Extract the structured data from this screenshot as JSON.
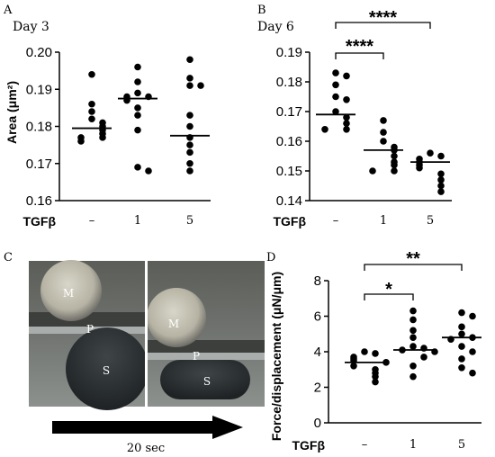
{
  "panels": {
    "a": "A",
    "b": "B",
    "c": "C",
    "d": "D"
  },
  "titles": {
    "a": "Day 3",
    "b": "Day 6"
  },
  "photo": {
    "labels": {
      "m": "M",
      "p": "P",
      "s": "S"
    },
    "time_label": "20 sec"
  },
  "group_label": "TGFβ",
  "chart_data": [
    {
      "type": "scatter",
      "title": "Day 3",
      "xlabel": "TGFβ",
      "ylabel": "Area (μm²)",
      "categories": [
        "–",
        "1",
        "5"
      ],
      "ylim": [
        0.16,
        0.2
      ],
      "yticks": [
        "0.16",
        "0.17",
        "0.18",
        "0.19",
        "0.20"
      ],
      "groups": [
        {
          "points": [
            0.194,
            0.186,
            0.184,
            0.182,
            0.181,
            0.18,
            0.179,
            0.178,
            0.177,
            0.177,
            0.176
          ],
          "median": 0.1795
        },
        {
          "points": [
            0.196,
            0.192,
            0.189,
            0.188,
            0.188,
            0.187,
            0.185,
            0.183,
            0.179,
            0.169,
            0.168
          ],
          "median": 0.1875
        },
        {
          "points": [
            0.198,
            0.193,
            0.191,
            0.191,
            0.183,
            0.18,
            0.177,
            0.175,
            0.173,
            0.17,
            0.168
          ],
          "median": 0.1775
        }
      ]
    },
    {
      "type": "scatter",
      "title": "Day 6",
      "xlabel": "TGFβ",
      "ylabel": "",
      "categories": [
        "–",
        "1",
        "5"
      ],
      "ylim": [
        0.14,
        0.19
      ],
      "yticks": [
        "0.14",
        "0.15",
        "0.16",
        "0.17",
        "0.18",
        "0.19"
      ],
      "groups": [
        {
          "points": [
            0.183,
            0.182,
            0.179,
            0.175,
            0.174,
            0.17,
            0.168,
            0.166,
            0.164,
            0.164
          ],
          "median": 0.169
        },
        {
          "points": [
            0.167,
            0.163,
            0.16,
            0.158,
            0.157,
            0.155,
            0.153,
            0.152,
            0.15,
            0.15
          ],
          "median": 0.157
        },
        {
          "points": [
            0.156,
            0.155,
            0.154,
            0.153,
            0.152,
            0.151,
            0.149,
            0.147,
            0.145,
            0.143
          ],
          "median": 0.153
        }
      ],
      "significance": [
        {
          "from": 0,
          "to": 1,
          "label": "****"
        },
        {
          "from": 0,
          "to": 2,
          "label": "****"
        }
      ]
    },
    {
      "type": "scatter",
      "title": "",
      "xlabel": "TGFβ",
      "ylabel": "Force/displacement (μN/μm)",
      "categories": [
        "–",
        "1",
        "5"
      ],
      "ylim": [
        0,
        8
      ],
      "yticks": [
        "0",
        "2",
        "4",
        "6",
        "8"
      ],
      "groups": [
        {
          "points": [
            4.0,
            3.9,
            3.7,
            3.6,
            3.5,
            3.4,
            3.2,
            3.0,
            2.8,
            2.6,
            2.3
          ],
          "median": 3.4
        },
        {
          "points": [
            6.3,
            5.8,
            5.2,
            4.8,
            4.3,
            4.2,
            4.1,
            4.0,
            3.7,
            3.2,
            2.6
          ],
          "median": 4.1
        },
        {
          "points": [
            6.2,
            6.0,
            5.4,
            5.0,
            4.8,
            4.7,
            4.3,
            4.0,
            3.6,
            3.1,
            2.8
          ],
          "median": 4.8
        }
      ],
      "significance": [
        {
          "from": 0,
          "to": 1,
          "label": "*"
        },
        {
          "from": 0,
          "to": 2,
          "label": "**"
        }
      ]
    }
  ]
}
